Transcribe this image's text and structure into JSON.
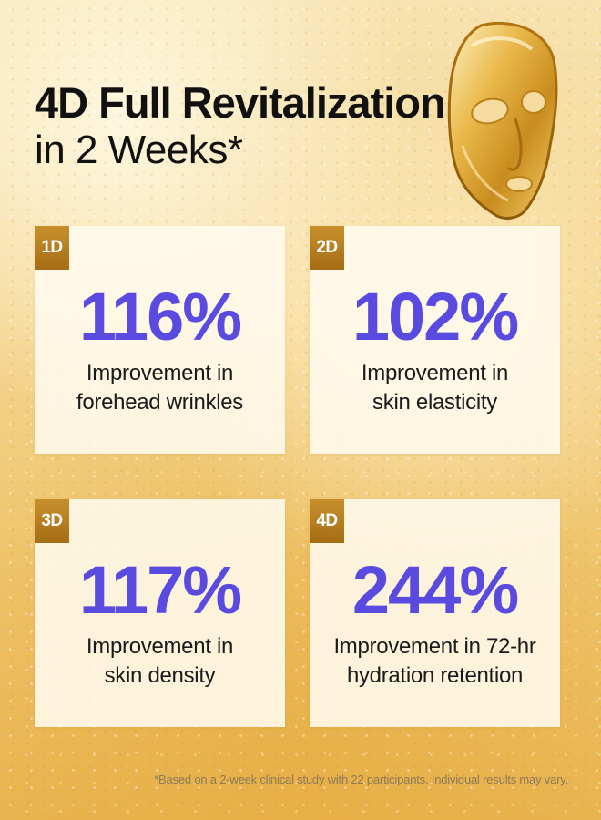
{
  "headline": {
    "line1": "4D Full Revitalization",
    "line2": "in 2 Weeks*"
  },
  "product_icon": "gold-sheet-mask-icon",
  "colors": {
    "accent_purple": "#5a4be0",
    "badge_gold": "#b47a1f"
  },
  "cards": [
    {
      "badge": "1D",
      "percent": "116%",
      "line1": "Improvement in",
      "line2": "forehead wrinkles"
    },
    {
      "badge": "2D",
      "percent": "102%",
      "line1": "Improvement in",
      "line2": "skin elasticity"
    },
    {
      "badge": "3D",
      "percent": "117%",
      "line1": "Improvement in",
      "line2": "skin density"
    },
    {
      "badge": "4D",
      "percent": "244%",
      "line1": "Improvement in 72-hr",
      "line2": "hydration retention"
    }
  ],
  "footnote": "*Based on a 2-week clinical study with 22 participants. Individual results may vary."
}
